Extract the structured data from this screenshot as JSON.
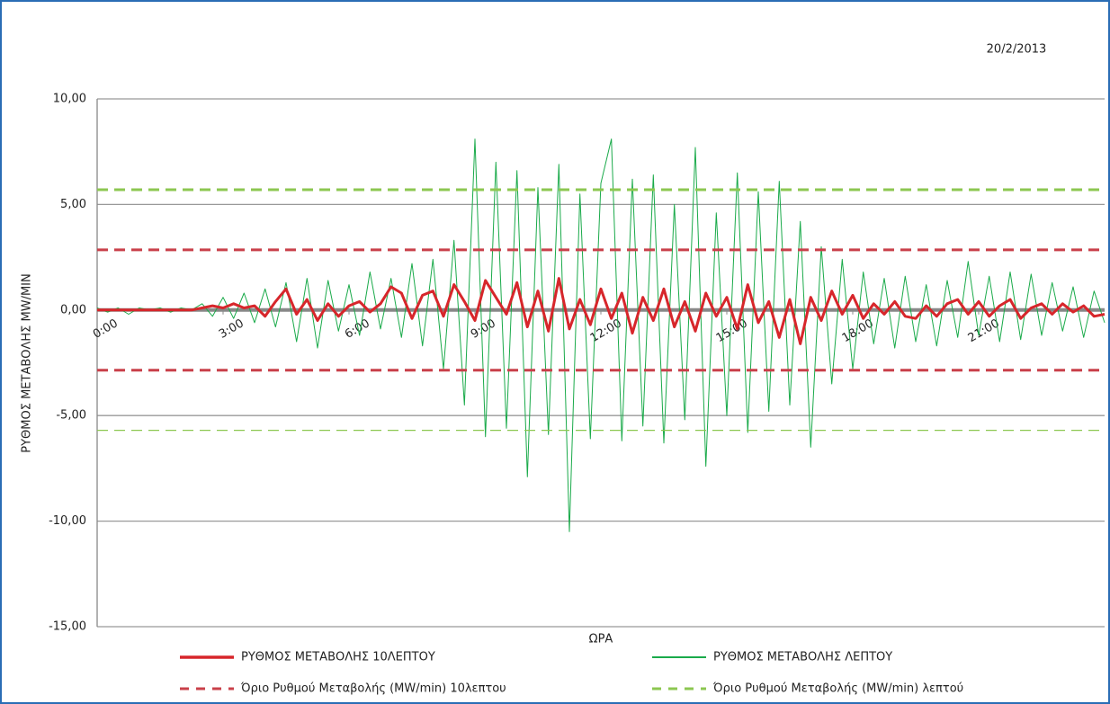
{
  "chart_data": {
    "type": "line",
    "date": "20/2/2013",
    "y_label": "ΡΥΘΜΟΣ ΜΕΤΑΒΟΛΗΣ MW/MIN",
    "x_label": "ΩΡΑ",
    "xlim": [
      0,
      24
    ],
    "xticks": [
      {
        "value": 0,
        "label": "0:00"
      },
      {
        "value": 3,
        "label": "3:00"
      },
      {
        "value": 6,
        "label": "6:00"
      },
      {
        "value": 9,
        "label": "9:00"
      },
      {
        "value": 12,
        "label": "12:00"
      },
      {
        "value": 15,
        "label": "15:00"
      },
      {
        "value": 18,
        "label": "18:00"
      },
      {
        "value": 21,
        "label": "21:00"
      }
    ],
    "ylim": [
      -15,
      10
    ],
    "yticks": [
      {
        "value": 10,
        "label": "10,00"
      },
      {
        "value": 5,
        "label": "5,00"
      },
      {
        "value": 0,
        "label": "0,00"
      },
      {
        "value": -5,
        "label": "-5,00"
      },
      {
        "value": -10,
        "label": "-10,00"
      },
      {
        "value": -15,
        "label": "-15,00"
      }
    ],
    "grid": true,
    "x": [
      0,
      0.25,
      0.5,
      0.75,
      1,
      1.25,
      1.5,
      1.75,
      2,
      2.25,
      2.5,
      2.75,
      3,
      3.25,
      3.5,
      3.75,
      4,
      4.25,
      4.5,
      4.75,
      5,
      5.25,
      5.5,
      5.75,
      6,
      6.25,
      6.5,
      6.75,
      7,
      7.25,
      7.5,
      7.75,
      8,
      8.25,
      8.5,
      8.75,
      9,
      9.25,
      9.5,
      9.75,
      10,
      10.25,
      10.5,
      10.75,
      11,
      11.25,
      11.5,
      11.75,
      12,
      12.25,
      12.5,
      12.75,
      13,
      13.25,
      13.5,
      13.75,
      14,
      14.25,
      14.5,
      14.75,
      15,
      15.25,
      15.5,
      15.75,
      16,
      16.25,
      16.5,
      16.75,
      17,
      17.25,
      17.5,
      17.75,
      18,
      18.25,
      18.5,
      18.75,
      19,
      19.25,
      19.5,
      19.75,
      20,
      20.25,
      20.5,
      20.75,
      21,
      21.25,
      21.5,
      21.75,
      22,
      22.25,
      22.5,
      22.75,
      23,
      23.25,
      23.5,
      23.75,
      24
    ],
    "series": [
      {
        "name": "ΡΥΘΜΟΣ ΜΕΤΑΒΟΛΗΣ 10ΛΕΠΤΟΥ",
        "color": "#d7262b",
        "width": 3,
        "values": [
          0,
          0,
          0,
          0,
          0,
          0,
          0,
          0,
          0,
          0,
          0.1,
          0.2,
          0.1,
          0.3,
          0.1,
          0.2,
          -0.3,
          0.4,
          1.0,
          -0.2,
          0.5,
          -0.5,
          0.3,
          -0.3,
          0.2,
          0.4,
          -0.1,
          0.3,
          1.1,
          0.8,
          -0.4,
          0.7,
          0.9,
          -0.3,
          1.2,
          0.4,
          -0.5,
          1.4,
          0.6,
          -0.2,
          1.3,
          -0.8,
          0.9,
          -1.0,
          1.5,
          -0.9,
          0.5,
          -0.7,
          1.0,
          -0.4,
          0.8,
          -1.1,
          0.6,
          -0.5,
          1.0,
          -0.8,
          0.4,
          -1.0,
          0.8,
          -0.3,
          0.6,
          -0.9,
          1.2,
          -0.6,
          0.4,
          -1.3,
          0.5,
          -1.6,
          0.6,
          -0.5,
          0.9,
          -0.2,
          0.7,
          -0.4,
          0.3,
          -0.2,
          0.4,
          -0.3,
          -0.4,
          0.2,
          -0.3,
          0.3,
          0.5,
          -0.2,
          0.4,
          -0.3,
          0.2,
          0.5,
          -0.4,
          0.1,
          0.3,
          -0.2,
          0.3,
          -0.1,
          0.2,
          -0.3,
          -0.2
        ]
      },
      {
        "name": "ΡΥΘΜΟΣ ΜΕΤΑΒΟΛΗΣ ΛΕΠΤΟΥ",
        "color": "#1aaa4a",
        "width": 1,
        "values": [
          0.1,
          -0.1,
          0.1,
          -0.2,
          0.1,
          0,
          0.1,
          -0.1,
          0.1,
          0,
          0.3,
          -0.3,
          0.6,
          -0.4,
          0.8,
          -0.6,
          1.0,
          -0.8,
          1.3,
          -1.5,
          1.5,
          -1.8,
          1.4,
          -1.0,
          1.2,
          -1.2,
          1.8,
          -0.9,
          1.5,
          -1.3,
          2.2,
          -1.7,
          2.4,
          -2.8,
          3.3,
          -4.5,
          8.1,
          -6.0,
          7.0,
          -5.6,
          6.6,
          -7.9,
          5.8,
          -5.9,
          6.9,
          -10.5,
          5.5,
          -6.1,
          6.0,
          8.1,
          -6.2,
          6.2,
          -5.5,
          6.4,
          -6.3,
          5.0,
          -5.2,
          7.7,
          -7.4,
          4.6,
          -5.0,
          6.5,
          -5.8,
          5.6,
          -4.8,
          6.1,
          -4.5,
          4.2,
          -6.5,
          3.0,
          -3.5,
          2.4,
          -2.8,
          1.8,
          -1.6,
          1.5,
          -1.8,
          1.6,
          -1.5,
          1.2,
          -1.7,
          1.4,
          -1.3,
          2.3,
          -1.2,
          1.6,
          -1.5,
          1.8,
          -1.4,
          1.7,
          -1.2,
          1.3,
          -1.0,
          1.1,
          -1.3,
          0.9,
          -0.6
        ]
      },
      {
        "name": "Όριο Ρυθμού Μεταβολής (MW/min) 10λεπτου",
        "color": "#c9404a",
        "dashed": true,
        "levels": [
          2.85,
          -2.85
        ]
      },
      {
        "name": "Όριο Ρυθμού Μεταβολής (MW/min) λεπτού",
        "color": "#8cc751",
        "dashed": true,
        "levels": [
          5.7,
          -5.7
        ]
      }
    ]
  }
}
